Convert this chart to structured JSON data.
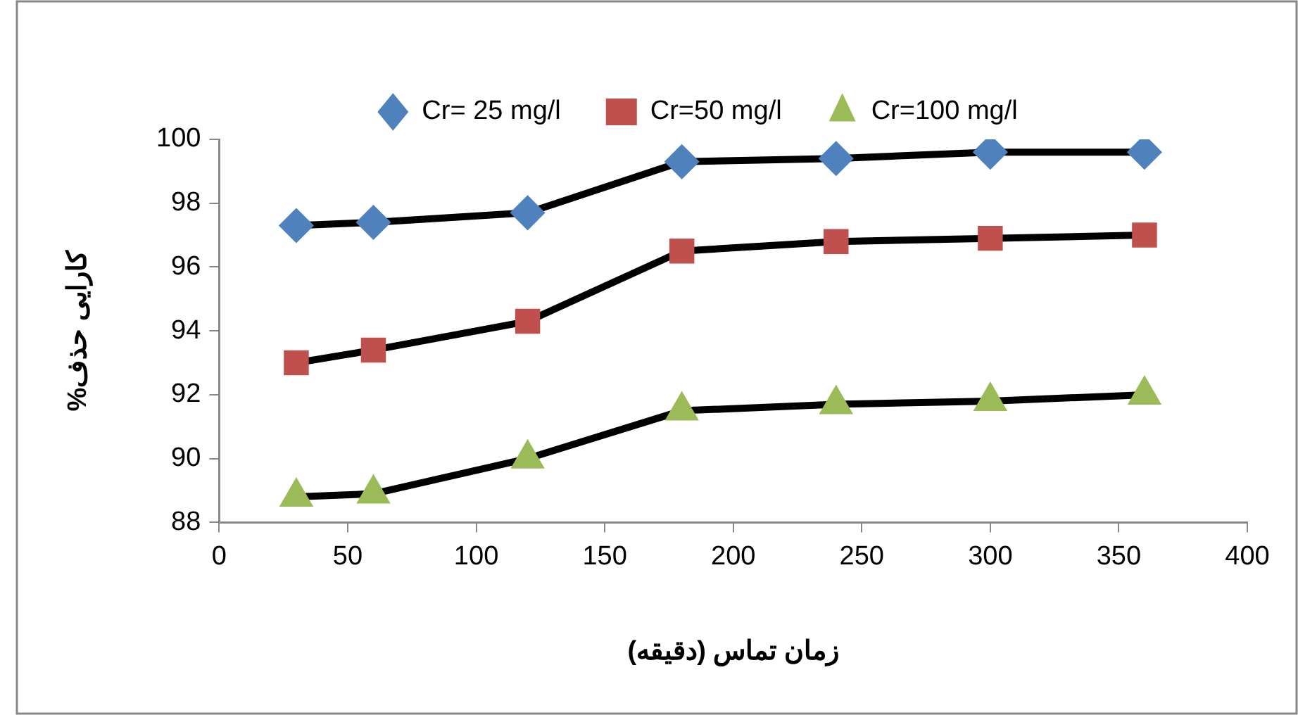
{
  "chart_data": {
    "type": "line",
    "xlabel": "زمان تماس (دقیقه)",
    "ylabel": "کارایی حذف%",
    "x": [
      30,
      60,
      120,
      180,
      240,
      300,
      360
    ],
    "series": [
      {
        "name": "Cr= 25 mg/l",
        "color": "#4f81bd",
        "marker": "diamond",
        "values": [
          97.3,
          97.4,
          97.7,
          99.3,
          99.4,
          99.6,
          99.6
        ]
      },
      {
        "name": "Cr=50 mg/l",
        "color": "#c0504d",
        "marker": "square",
        "values": [
          93.0,
          93.4,
          94.3,
          96.5,
          96.8,
          96.9,
          97.0
        ]
      },
      {
        "name": "Cr=100 mg/l",
        "color": "#9bbb59",
        "marker": "triangle",
        "values": [
          88.8,
          88.9,
          90.0,
          91.5,
          91.7,
          91.8,
          92.0
        ]
      }
    ],
    "xlim": [
      0,
      400
    ],
    "xticks": [
      0,
      50,
      100,
      150,
      200,
      250,
      300,
      350,
      400
    ],
    "ylim": [
      88,
      100
    ],
    "yticks": [
      88,
      90,
      92,
      94,
      96,
      98,
      100
    ],
    "grid": false,
    "legend": "top",
    "line_style": "solid"
  }
}
